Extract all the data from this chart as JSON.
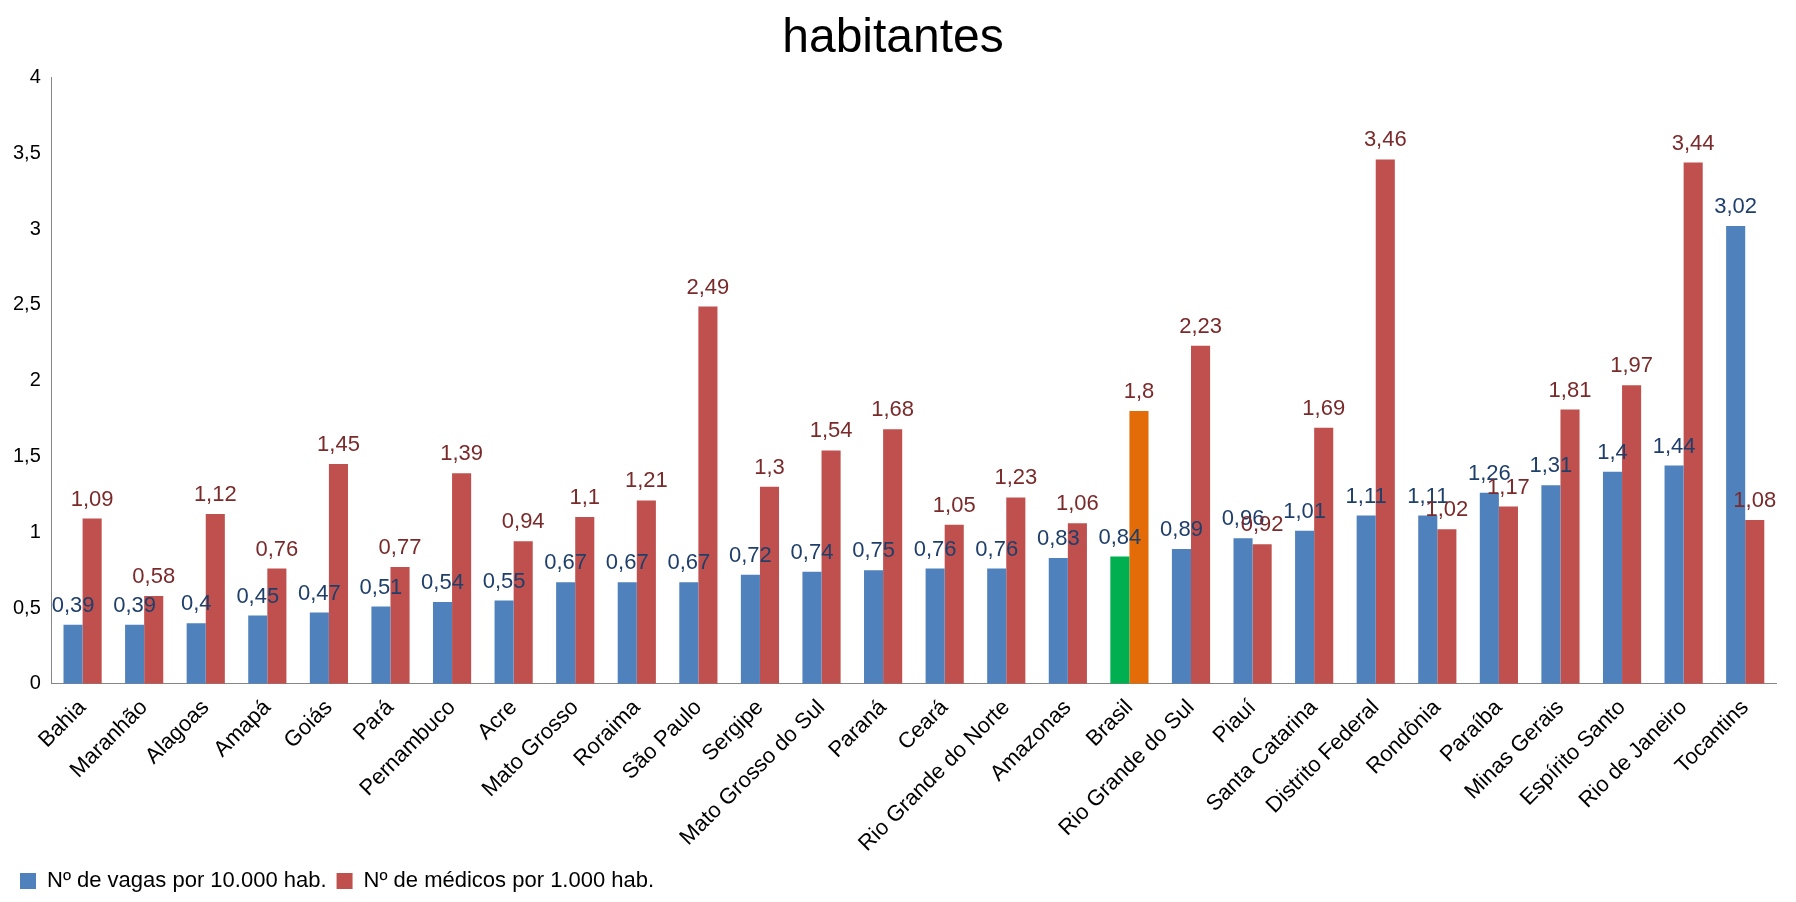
{
  "chart_data": {
    "type": "bar",
    "title": "habitantes",
    "categories": [
      "Bahia",
      "Maranhão",
      "Alagoas",
      "Amapá",
      "Goiás",
      "Pará",
      "Pernambuco",
      "Acre",
      "Mato Grosso",
      "Roraima",
      "São Paulo",
      "Sergipe",
      "Mato Grosso do Sul",
      "Paraná",
      "Ceará",
      "Rio Grande do Norte",
      "Amazonas",
      "Brasil",
      "Rio Grande do Sul",
      "Piauí",
      "Santa Catarina",
      "Distrito Federal",
      "Rondônia",
      "Paraíba",
      "Minas Gerais",
      "Espírito Santo",
      "Rio de Janeiro",
      "Tocantins"
    ],
    "series": [
      {
        "name": "Nº de vagas por 10.000 hab.",
        "color": "#4f81bd",
        "colors": [
          "#4f81bd",
          "#4f81bd",
          "#4f81bd",
          "#4f81bd",
          "#4f81bd",
          "#4f81bd",
          "#4f81bd",
          "#4f81bd",
          "#4f81bd",
          "#4f81bd",
          "#4f81bd",
          "#4f81bd",
          "#4f81bd",
          "#4f81bd",
          "#4f81bd",
          "#4f81bd",
          "#4f81bd",
          "#00b050",
          "#4f81bd",
          "#4f81bd",
          "#4f81bd",
          "#4f81bd",
          "#4f81bd",
          "#4f81bd",
          "#4f81bd",
          "#4f81bd",
          "#4f81bd",
          "#4f81bd"
        ],
        "values": [
          0.39,
          0.39,
          0.4,
          0.45,
          0.47,
          0.51,
          0.54,
          0.55,
          0.67,
          0.67,
          0.67,
          0.72,
          0.74,
          0.75,
          0.76,
          0.76,
          0.83,
          0.84,
          0.89,
          0.96,
          1.01,
          1.11,
          1.11,
          1.26,
          1.31,
          1.4,
          1.44,
          3.02
        ],
        "value_labels": [
          "0,39",
          "0,39",
          "0,4",
          "0,45",
          "0,47",
          "0,51",
          "0,54",
          "0,55",
          "0,67",
          "0,67",
          "0,67",
          "0,72",
          "0,74",
          "0,75",
          "0,76",
          "0,76",
          "0,83",
          "0,84",
          "0,89",
          "0,96",
          "1,01",
          "1,11",
          "1,11",
          "1,26",
          "1,31",
          "1,4",
          "1,44",
          "3,02"
        ]
      },
      {
        "name": "Nº de médicos por 1.000 hab.",
        "color": "#c0504d",
        "colors": [
          "#c0504d",
          "#c0504d",
          "#c0504d",
          "#c0504d",
          "#c0504d",
          "#c0504d",
          "#c0504d",
          "#c0504d",
          "#c0504d",
          "#c0504d",
          "#c0504d",
          "#c0504d",
          "#c0504d",
          "#c0504d",
          "#c0504d",
          "#c0504d",
          "#c0504d",
          "#e36c09",
          "#c0504d",
          "#c0504d",
          "#c0504d",
          "#c0504d",
          "#c0504d",
          "#c0504d",
          "#c0504d",
          "#c0504d",
          "#c0504d",
          "#c0504d"
        ],
        "values": [
          1.09,
          0.58,
          1.12,
          0.76,
          1.45,
          0.77,
          1.39,
          0.94,
          1.1,
          1.21,
          2.49,
          1.3,
          1.54,
          1.68,
          1.05,
          1.23,
          1.06,
          1.8,
          2.23,
          0.92,
          1.69,
          3.46,
          1.02,
          1.17,
          1.81,
          1.97,
          3.44,
          1.08
        ],
        "value_labels": [
          "1,09",
          "0,58",
          "1,12",
          "0,76",
          "1,45",
          "0,77",
          "1,39",
          "0,94",
          "1,1",
          "1,21",
          "2,49",
          "1,3",
          "1,54",
          "1,68",
          "1,05",
          "1,23",
          "1,06",
          "1,8",
          "2,23",
          "0,92",
          "1,69",
          "3,46",
          "1,02",
          "1,17",
          "1,81",
          "1,97",
          "3,44",
          "1,08"
        ]
      }
    ],
    "ylim": [
      0,
      4
    ],
    "yticks": [
      {
        "value": 0,
        "label": "0"
      },
      {
        "value": 0.5,
        "label": "0,5"
      },
      {
        "value": 1,
        "label": "1"
      },
      {
        "value": 1.5,
        "label": "1,5"
      },
      {
        "value": 2,
        "label": "2"
      },
      {
        "value": 2.5,
        "label": "2,5"
      },
      {
        "value": 3,
        "label": "3"
      },
      {
        "value": 3.5,
        "label": "3,5"
      },
      {
        "value": 4,
        "label": "4"
      }
    ],
    "grid": false,
    "legend": "bottom left"
  }
}
